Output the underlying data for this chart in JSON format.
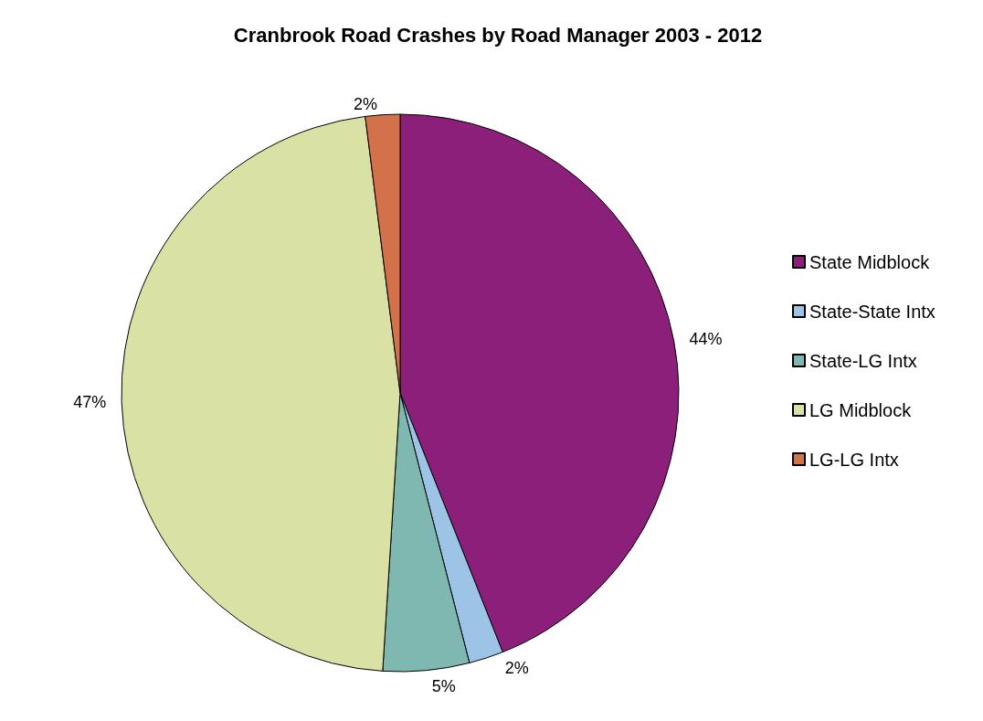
{
  "chart_data": {
    "type": "pie",
    "title": "Cranbrook Road Crashes by Road Manager 2003 - 2012",
    "categories": [
      "State Midblock",
      "State-State Intx",
      "State-LG Intx",
      "LG Midblock",
      "LG-LG Intx"
    ],
    "values": [
      44,
      2,
      5,
      47,
      2
    ],
    "value_labels": [
      "44%",
      "2%",
      "5%",
      "47%",
      "2%"
    ],
    "colors": [
      "#8b1f7a",
      "#9dc3e6",
      "#7fb8b0",
      "#d9e1a5",
      "#d2714a"
    ],
    "legend": "right"
  }
}
